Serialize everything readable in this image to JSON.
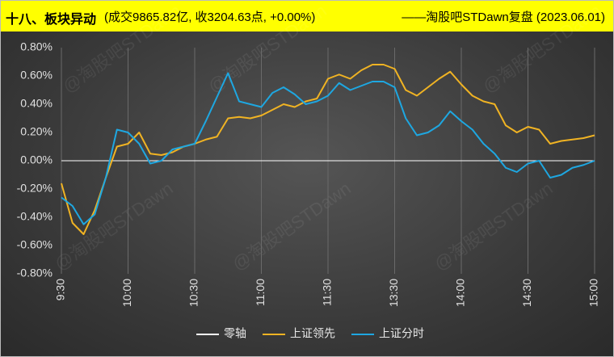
{
  "chart_data": {
    "type": "line",
    "title": "十八、板块异动",
    "subtitle": "(成交9865.82亿, 收3204.63点, +0.00%)",
    "source": "——淘股吧STDawn复盘 (2023.06.01)",
    "watermark": "@淘股吧STDawn",
    "categories": [
      "9:30",
      null,
      null,
      null,
      null,
      null,
      "10:00",
      null,
      null,
      null,
      null,
      null,
      "10:30",
      null,
      null,
      null,
      null,
      null,
      "11:00",
      null,
      null,
      null,
      null,
      null,
      "11:30",
      null,
      null,
      null,
      null,
      null,
      "13:30",
      null,
      null,
      null,
      null,
      null,
      "14:00",
      null,
      null,
      null,
      null,
      null,
      "14:30",
      null,
      null,
      null,
      null,
      null,
      "15:00"
    ],
    "series": [
      {
        "name": "零轴",
        "color": "#ffffff",
        "values": [
          0,
          0,
          0,
          0,
          0,
          0,
          0,
          0,
          0,
          0,
          0,
          0,
          0,
          0,
          0,
          0,
          0,
          0,
          0,
          0,
          0,
          0,
          0,
          0,
          0,
          0,
          0,
          0,
          0,
          0,
          0,
          0,
          0,
          0,
          0,
          0,
          0,
          0,
          0,
          0,
          0,
          0,
          0,
          0,
          0,
          0,
          0,
          0,
          0
        ]
      },
      {
        "name": "上证领先",
        "color": "#f0b323",
        "values": [
          -0.16,
          -0.44,
          -0.52,
          -0.35,
          -0.12,
          0.1,
          0.12,
          0.2,
          0.05,
          0.04,
          0.06,
          0.1,
          0.12,
          0.15,
          0.17,
          0.3,
          0.31,
          0.3,
          0.32,
          0.36,
          0.4,
          0.38,
          0.42,
          0.44,
          0.58,
          0.61,
          0.58,
          0.64,
          0.68,
          0.68,
          0.65,
          0.5,
          0.46,
          0.52,
          0.58,
          0.63,
          0.54,
          0.46,
          0.42,
          0.4,
          0.25,
          0.2,
          0.24,
          0.22,
          0.12,
          0.14,
          0.15,
          0.16,
          0.18
        ]
      },
      {
        "name": "上证分时",
        "color": "#1ea7e1",
        "values": [
          -0.26,
          -0.32,
          -0.45,
          -0.38,
          -0.12,
          0.22,
          0.2,
          0.12,
          -0.02,
          0.0,
          0.08,
          0.1,
          0.12,
          0.28,
          0.45,
          0.62,
          0.42,
          0.4,
          0.38,
          0.48,
          0.52,
          0.47,
          0.4,
          0.42,
          0.46,
          0.55,
          0.5,
          0.53,
          0.56,
          0.56,
          0.52,
          0.3,
          0.18,
          0.2,
          0.25,
          0.35,
          0.28,
          0.22,
          0.12,
          0.05,
          -0.05,
          -0.08,
          -0.02,
          0.0,
          -0.12,
          -0.1,
          -0.05,
          -0.03,
          0.0
        ]
      }
    ],
    "ylim": [
      -0.8,
      0.8
    ],
    "yticks": [
      {
        "value": -0.8,
        "label": "-0.80%"
      },
      {
        "value": -0.6,
        "label": "-0.60%"
      },
      {
        "value": -0.4,
        "label": "-0.40%"
      },
      {
        "value": -0.2,
        "label": "-0.20%"
      },
      {
        "value": 0,
        "label": "0.00%"
      },
      {
        "value": 0.2,
        "label": "0.20%"
      },
      {
        "value": 0.4,
        "label": "0.40%"
      },
      {
        "value": 0.6,
        "label": "0.60%"
      },
      {
        "value": 0.8,
        "label": "0.80%"
      }
    ],
    "grid": "x",
    "legend": "bottom"
  }
}
